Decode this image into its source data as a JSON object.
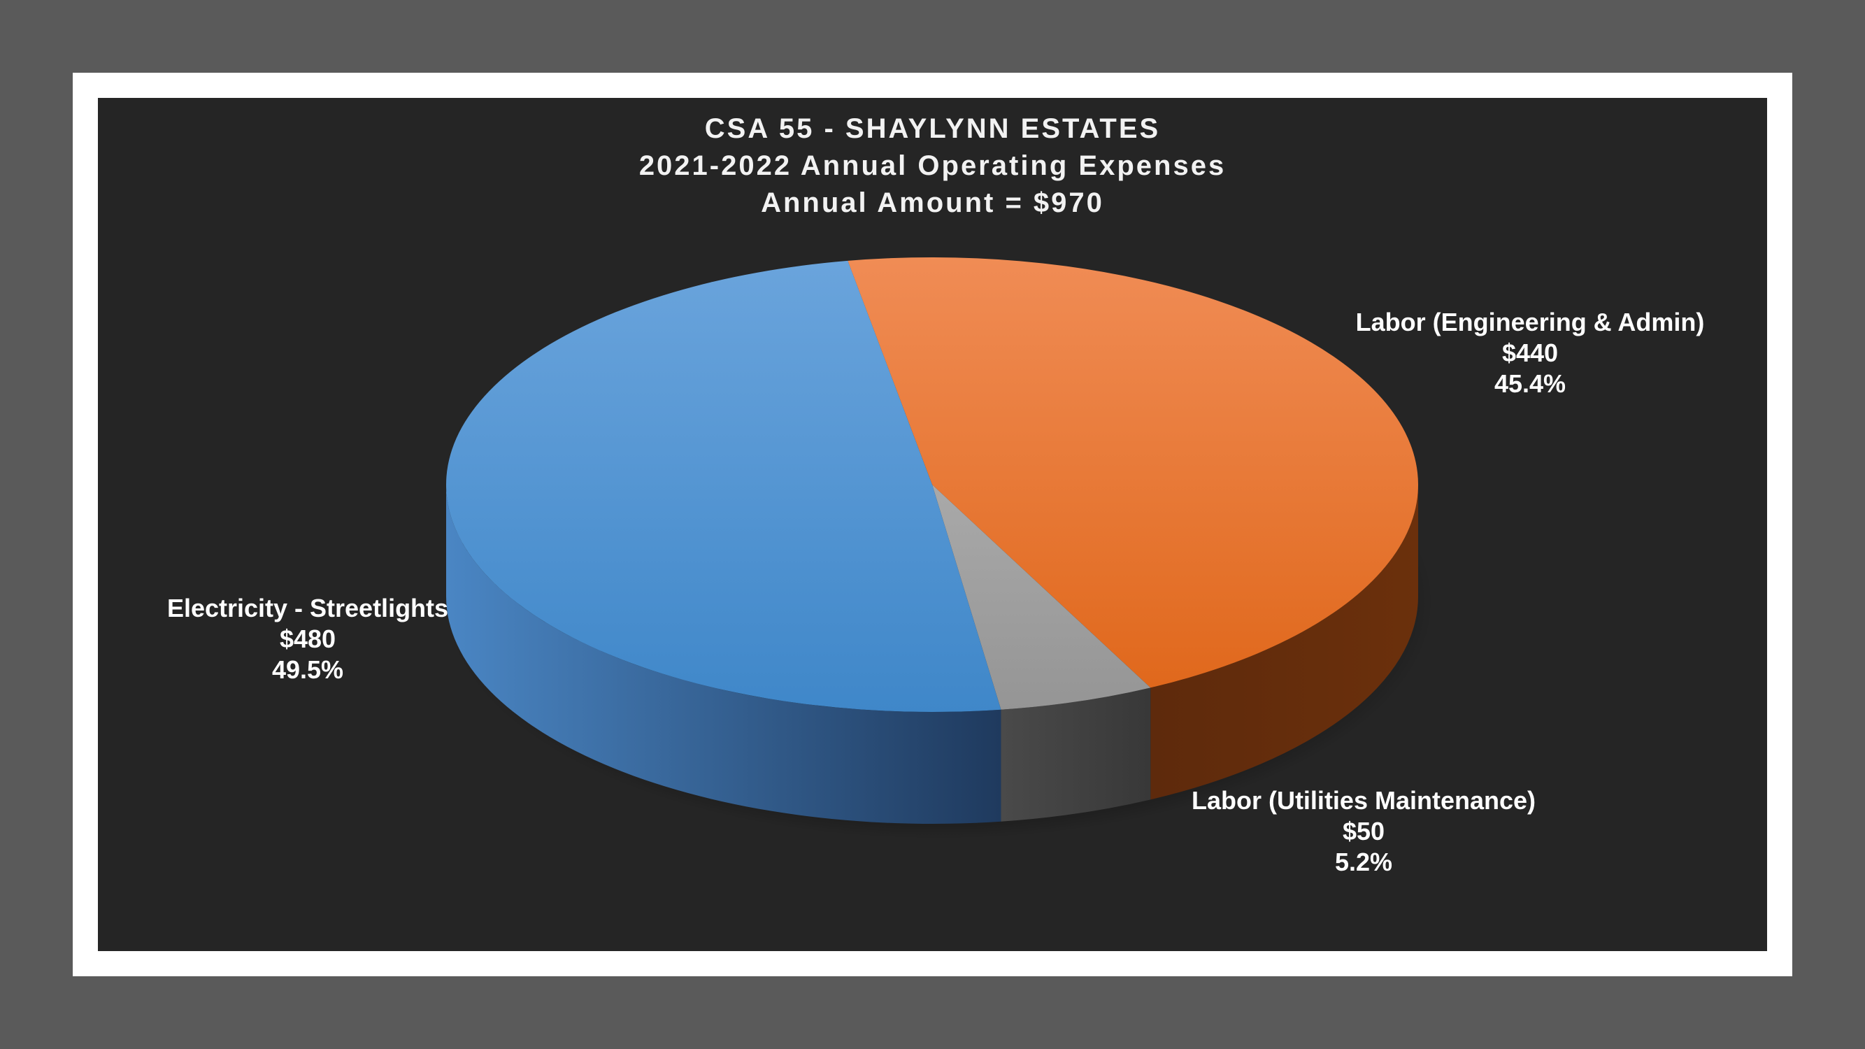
{
  "chart_data": {
    "type": "pie",
    "title": [
      "CSA 55 - SHAYLYNN ESTATES",
      "2021-2022 Annual Operating Expenses",
      "Annual Amount = $970"
    ],
    "slices": [
      {
        "label": "Labor (Engineering & Admin)",
        "amount": "$440",
        "percent": "45.4%",
        "value": 440,
        "color": "#ed7d31"
      },
      {
        "label": "Labor (Utilities Maintenance)",
        "amount": "$50",
        "percent": "5.2%",
        "value": 50,
        "color": "#a5a5a5"
      },
      {
        "label": "Electricity - Streetlights",
        "amount": "$480",
        "percent": "49.5%",
        "value": 480,
        "color": "#5b9bd5"
      }
    ]
  }
}
